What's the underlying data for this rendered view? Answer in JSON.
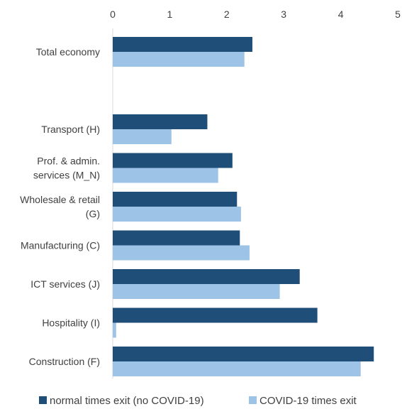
{
  "chart_data": {
    "type": "bar",
    "orientation": "horizontal",
    "xlim": [
      0,
      5
    ],
    "x_ticks": [
      "0",
      "1",
      "2",
      "3",
      "4",
      "5"
    ],
    "x_axis_position": "top",
    "categories": [
      {
        "lines": [
          "Total economy"
        ]
      },
      {
        "lines": [
          ""
        ]
      },
      {
        "lines": [
          "Transport (H)"
        ]
      },
      {
        "lines": [
          "Prof. & admin.",
          "services (M_N)"
        ]
      },
      {
        "lines": [
          "Wholesale & retail",
          "(G)"
        ]
      },
      {
        "lines": [
          "Manufacturing (C)"
        ]
      },
      {
        "lines": [
          "ICT services (J)"
        ]
      },
      {
        "lines": [
          "Hospitality (I)"
        ]
      },
      {
        "lines": [
          "Construction (F)"
        ]
      }
    ],
    "series": [
      {
        "name": "normal times exit (no COVID-19)",
        "color": "#1f4e79",
        "values": [
          2.45,
          null,
          1.66,
          2.1,
          2.18,
          2.23,
          3.28,
          3.59,
          4.58
        ]
      },
      {
        "name": "COVID-19 times exit",
        "color": "#9dc3e6",
        "values": [
          2.31,
          null,
          1.03,
          1.85,
          2.25,
          2.4,
          2.93,
          0.06,
          4.35
        ]
      }
    ],
    "grid": false,
    "legend_position": "bottom"
  }
}
